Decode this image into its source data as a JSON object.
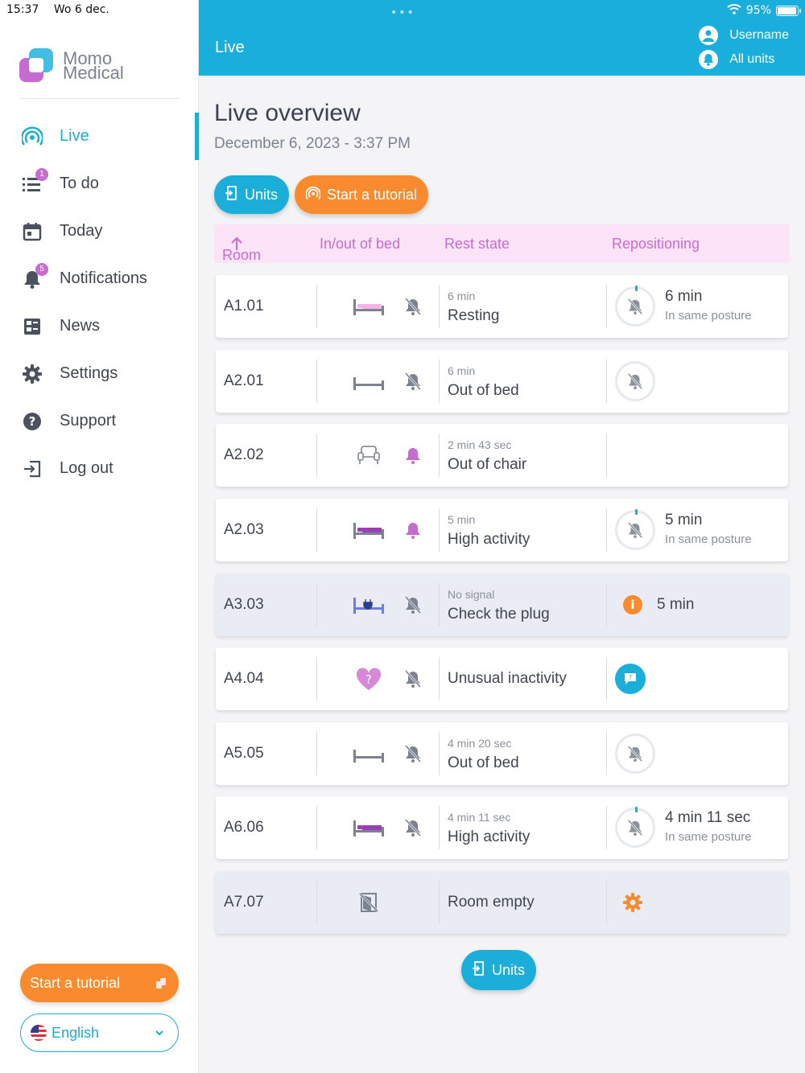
{
  "status_bar": {
    "time": "15:37",
    "date": "Wo 6 dec.",
    "battery": "95%"
  },
  "brand": {
    "line1": "Momo",
    "line2": "Medical"
  },
  "sidebar": {
    "items": [
      {
        "label": "Live",
        "icon": "broadcast-icon",
        "active": true
      },
      {
        "label": "To do",
        "icon": "checklist-icon",
        "badge": "1"
      },
      {
        "label": "Today",
        "icon": "calendar-icon"
      },
      {
        "label": "Notifications",
        "icon": "bell-icon",
        "badge": "5"
      },
      {
        "label": "News",
        "icon": "news-icon"
      },
      {
        "label": "Settings",
        "icon": "gear-icon"
      },
      {
        "label": "Support",
        "icon": "question-icon"
      },
      {
        "label": "Log out",
        "icon": "logout-icon"
      }
    ],
    "tutorial_label": "Start a tutorial",
    "language": "English"
  },
  "header": {
    "title": "Live",
    "username": "Username",
    "units": "All units"
  },
  "main": {
    "title": "Live overview",
    "date": "December 6, 2023 - 3:37 PM",
    "units_button": "Units",
    "tutorial_button": "Start a tutorial",
    "columns": {
      "room": "Room",
      "inout": "In/out of bed",
      "rest": "Rest state",
      "repositioning": "Repositioning"
    },
    "rows": [
      {
        "room": "A1.01",
        "rest_time": "6 min",
        "rest_state": "Resting",
        "repo_time": "6 min",
        "repo_note": "In same posture"
      },
      {
        "room": "A2.01",
        "rest_time": "6 min",
        "rest_state": "Out of bed"
      },
      {
        "room": "A2.02",
        "rest_time": "2 min 43 sec",
        "rest_state": "Out of chair"
      },
      {
        "room": "A2.03",
        "rest_time": "5 min",
        "rest_state": "High activity",
        "repo_time": "5 min",
        "repo_note": "In same posture"
      },
      {
        "room": "A3.03",
        "rest_time": "No signal",
        "rest_state": "Check the plug",
        "info_text": "5 min"
      },
      {
        "room": "A4.04",
        "rest_state": "Unusual inactivity"
      },
      {
        "room": "A5.05",
        "rest_time": "4 min 20 sec",
        "rest_state": "Out of bed"
      },
      {
        "room": "A6.06",
        "rest_time": "4 min 11 sec",
        "rest_state": "High activity",
        "repo_time": "4 min 11 sec",
        "repo_note": "In same posture"
      },
      {
        "room": "A7.07",
        "rest_state": "Room empty"
      }
    ],
    "units_bottom": "Units"
  },
  "colors": {
    "accent": "#1aaed8",
    "orange": "#f98a2d",
    "pink": "#c86bd1",
    "header_bg": "#fde3f7"
  }
}
